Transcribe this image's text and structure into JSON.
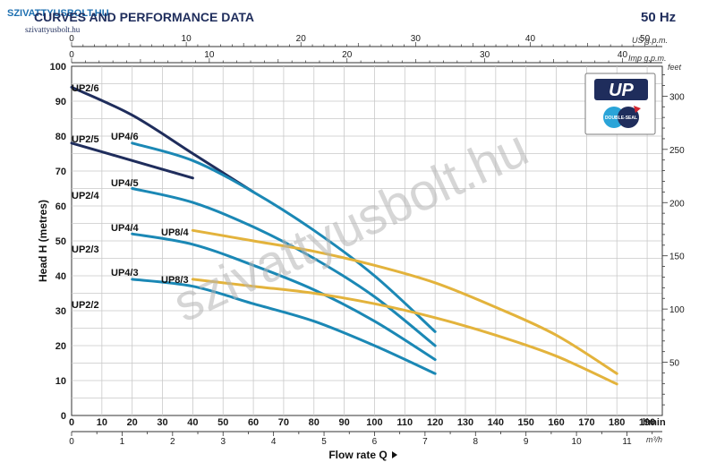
{
  "header": {
    "watermark_top": "SZIVATTYUSBOLT.HU",
    "title": "CURVES AND PERFORMANCE DATA",
    "site_small": "szivattyusbolt.hu",
    "frequency": "50 Hz",
    "watermark_center": "szivattyusbolt.hu"
  },
  "logo": {
    "brand": "UP",
    "badge": "DOUBLE-SEAL"
  },
  "chart_data": {
    "type": "line",
    "xlabel": "Flow rate Q",
    "ylabel": "Head H (metres)",
    "xlim": [
      0,
      195
    ],
    "ylim": [
      0,
      100
    ],
    "x_unit": "l/min",
    "x_ticks": [
      10,
      20,
      30,
      40,
      50,
      60,
      70,
      80,
      90,
      100,
      110,
      120,
      130,
      140,
      150,
      160,
      170,
      180,
      190
    ],
    "y_ticks": [
      10,
      20,
      30,
      40,
      50,
      60,
      70,
      80,
      90,
      100
    ],
    "secondary_axes": {
      "us_gpm": {
        "label": "US g.p.m.",
        "ticks": [
          0,
          10,
          20,
          30,
          40,
          50
        ]
      },
      "imp_gpm": {
        "label": "Imp g.p.m.",
        "ticks": [
          0,
          10,
          20,
          30,
          40
        ]
      },
      "m3h": {
        "label": "m³/h",
        "ticks": [
          0,
          1,
          2,
          3,
          4,
          5,
          6,
          7,
          8,
          9,
          10,
          11
        ]
      },
      "feet": {
        "label": "feet",
        "ticks": [
          50,
          100,
          150,
          200,
          250,
          300
        ]
      }
    },
    "series": [
      {
        "name": "UP2/6",
        "color": "#1f2d5c",
        "x": [
          0,
          20,
          40,
          60
        ],
        "y": [
          94,
          86,
          75,
          64
        ]
      },
      {
        "name": "UP2/5",
        "color": "#1f2d5c",
        "x": [
          0,
          20,
          40
        ],
        "y": [
          78,
          73,
          68
        ]
      },
      {
        "name": "UP2/4",
        "color": "#1f2d5c",
        "x": [],
        "y": []
      },
      {
        "name": "UP2/3",
        "color": "#1f2d5c",
        "x": [],
        "y": []
      },
      {
        "name": "UP2/2",
        "color": "#1f2d5c",
        "x": [],
        "y": []
      },
      {
        "name": "UP4/6",
        "color": "#1b88b5",
        "x": [
          20,
          40,
          60,
          80,
          100,
          120
        ],
        "y": [
          78,
          73,
          64,
          53,
          40,
          24
        ]
      },
      {
        "name": "UP4/5",
        "color": "#1b88b5",
        "x": [
          20,
          40,
          60,
          80,
          100,
          120
        ],
        "y": [
          65,
          61,
          54,
          45,
          34,
          20
        ]
      },
      {
        "name": "UP4/4",
        "color": "#1b88b5",
        "x": [
          20,
          40,
          60,
          80,
          100,
          120
        ],
        "y": [
          52,
          49,
          43,
          36,
          27,
          16
        ]
      },
      {
        "name": "UP4/3",
        "color": "#1b88b5",
        "x": [
          20,
          40,
          60,
          80,
          100,
          120
        ],
        "y": [
          39,
          37,
          32,
          27,
          20,
          12
        ]
      },
      {
        "name": "UP8/4",
        "color": "#e3b33c",
        "x": [
          40,
          60,
          80,
          100,
          120,
          140,
          160,
          180
        ],
        "y": [
          53,
          50,
          47,
          43,
          38,
          31,
          23,
          12
        ]
      },
      {
        "name": "UP8/3",
        "color": "#e3b33c",
        "x": [
          40,
          60,
          80,
          100,
          120,
          140,
          160,
          180
        ],
        "y": [
          39,
          37,
          35,
          32,
          28,
          23,
          17,
          9
        ]
      }
    ]
  }
}
